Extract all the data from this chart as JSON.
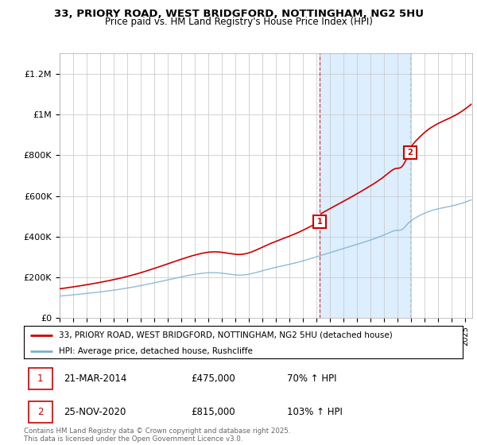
{
  "title_line1": "33, PRIORY ROAD, WEST BRIDGFORD, NOTTINGHAM, NG2 5HU",
  "title_line2": "Price paid vs. HM Land Registry's House Price Index (HPI)",
  "ylabel_ticks": [
    "£0",
    "£200K",
    "£400K",
    "£600K",
    "£800K",
    "£1M",
    "£1.2M"
  ],
  "ytick_values": [
    0,
    200000,
    400000,
    600000,
    800000,
    1000000,
    1200000
  ],
  "ylim": [
    0,
    1300000
  ],
  "xlim_start": 1995.0,
  "xlim_end": 2025.5,
  "marker1_x": 2014.22,
  "marker1_y": 475000,
  "marker1_label": "1",
  "marker2_x": 2020.92,
  "marker2_y": 815000,
  "marker2_label": "2",
  "legend_line1": "33, PRIORY ROAD, WEST BRIDGFORD, NOTTINGHAM, NG2 5HU (detached house)",
  "legend_line2": "HPI: Average price, detached house, Rushcliffe",
  "note1_label": "1",
  "note1_date": "21-MAR-2014",
  "note1_price": "£475,000",
  "note1_hpi": "70% ↑ HPI",
  "note2_label": "2",
  "note2_date": "25-NOV-2020",
  "note2_price": "£815,000",
  "note2_hpi": "103% ↑ HPI",
  "footer": "Contains HM Land Registry data © Crown copyright and database right 2025.\nThis data is licensed under the Open Government Licence v3.0.",
  "red_color": "#cc0000",
  "blue_color": "#7aafd4",
  "shade_color": "#ddeeff",
  "grid_color": "#cccccc",
  "vline1_color": "#cc0000",
  "vline2_color": "#aabbcc"
}
